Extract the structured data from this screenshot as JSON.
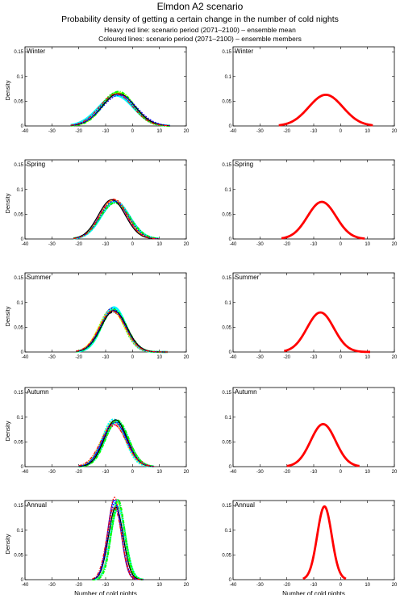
{
  "header": {
    "title": "Elmdon A2 scenario",
    "subtitle": "Probability density of getting a certain change in the number of cold nights",
    "note_mean": "Heavy red line: scenario period (2071–2100) – ensemble mean",
    "note_members": "Coloured lines: scenario period (2071–2100) – ensemble members"
  },
  "colors": {
    "ensemble_mean": "#ff0000",
    "member_colors": [
      "#00ffff",
      "#00ff00",
      "#000000",
      "#0000ff",
      "#ff0000",
      "#ff00ff",
      "#ffff00"
    ]
  },
  "chart_data": [
    {
      "type": "line",
      "panel": "Winter",
      "column": "ensemble members",
      "xlabel": "",
      "ylabel": "Density",
      "xlim": [
        -40,
        20
      ],
      "ylim": [
        0,
        0.16
      ],
      "xticks": [
        -40,
        -30,
        -20,
        -10,
        0,
        10,
        20
      ],
      "yticks": [
        0,
        0.05,
        0.1,
        0.15
      ],
      "series": [
        {
          "kind": "ensemble members",
          "mean": -5.5,
          "peak": 0.065,
          "x_range": [
            -23,
            14
          ]
        }
      ]
    },
    {
      "type": "line",
      "panel": "Winter",
      "column": "ensemble mean",
      "xlabel": "",
      "ylabel": "",
      "xlim": [
        -40,
        20
      ],
      "ylim": [
        0,
        0.16
      ],
      "xticks": [
        -40,
        -30,
        -20,
        -10,
        0,
        10,
        20
      ],
      "yticks": [
        0,
        0.05,
        0.1,
        0.15
      ],
      "series": [
        {
          "kind": "ensemble mean",
          "mean": -5.5,
          "peak": 0.063,
          "x_range": [
            -23,
            12
          ]
        }
      ]
    },
    {
      "type": "line",
      "panel": "Spring",
      "column": "ensemble members",
      "xlabel": "",
      "ylabel": "Density",
      "xlim": [
        -40,
        20
      ],
      "ylim": [
        0,
        0.16
      ],
      "xticks": [
        -40,
        -30,
        -20,
        -10,
        0,
        10,
        20
      ],
      "yticks": [
        0,
        0.05,
        0.1,
        0.15
      ],
      "series": [
        {
          "kind": "ensemble members",
          "mean": -7,
          "peak": 0.077,
          "x_range": [
            -22,
            10
          ]
        }
      ]
    },
    {
      "type": "line",
      "panel": "Spring",
      "column": "ensemble mean",
      "xlabel": "",
      "ylabel": "",
      "xlim": [
        -40,
        20
      ],
      "ylim": [
        0,
        0.16
      ],
      "xticks": [
        -40,
        -30,
        -20,
        -10,
        0,
        10,
        20
      ],
      "yticks": [
        0,
        0.05,
        0.1,
        0.15
      ],
      "series": [
        {
          "kind": "ensemble mean",
          "mean": -7,
          "peak": 0.075,
          "x_range": [
            -22,
            9
          ]
        }
      ]
    },
    {
      "type": "line",
      "panel": "Summer",
      "column": "ensemble members",
      "xlabel": "",
      "ylabel": "Density",
      "xlim": [
        -40,
        20
      ],
      "ylim": [
        0,
        0.16
      ],
      "xticks": [
        -40,
        -30,
        -20,
        -10,
        0,
        10,
        20
      ],
      "yticks": [
        0,
        0.05,
        0.1,
        0.15
      ],
      "series": [
        {
          "kind": "ensemble members",
          "mean": -7.5,
          "peak": 0.085,
          "x_range": [
            -21,
            13
          ]
        }
      ]
    },
    {
      "type": "line",
      "panel": "Summer",
      "column": "ensemble mean",
      "xlabel": "",
      "ylabel": "",
      "xlim": [
        -40,
        20
      ],
      "ylim": [
        0,
        0.16
      ],
      "xticks": [
        -40,
        -30,
        -20,
        -10,
        0,
        10,
        20
      ],
      "yticks": [
        0,
        0.05,
        0.1,
        0.15
      ],
      "series": [
        {
          "kind": "ensemble mean",
          "mean": -7.5,
          "peak": 0.08,
          "x_range": [
            -21,
            11
          ]
        }
      ]
    },
    {
      "type": "line",
      "panel": "Autumn",
      "column": "ensemble members",
      "xlabel": "",
      "ylabel": "Density",
      "xlim": [
        -40,
        20
      ],
      "ylim": [
        0,
        0.16
      ],
      "xticks": [
        -40,
        -30,
        -20,
        -10,
        0,
        10,
        20
      ],
      "yticks": [
        0,
        0.05,
        0.1,
        0.15
      ],
      "series": [
        {
          "kind": "ensemble members",
          "mean": -6.5,
          "peak": 0.09,
          "x_range": [
            -20,
            8
          ]
        }
      ]
    },
    {
      "type": "line",
      "panel": "Autumn",
      "column": "ensemble mean",
      "xlabel": "",
      "ylabel": "",
      "xlim": [
        -40,
        20
      ],
      "ylim": [
        0,
        0.16
      ],
      "xticks": [
        -40,
        -30,
        -20,
        -10,
        0,
        10,
        20
      ],
      "yticks": [
        0,
        0.05,
        0.1,
        0.15
      ],
      "series": [
        {
          "kind": "ensemble mean",
          "mean": -6.5,
          "peak": 0.086,
          "x_range": [
            -20,
            7
          ]
        }
      ]
    },
    {
      "type": "line",
      "panel": "Annual",
      "column": "ensemble members",
      "xlabel": "Number of cold nights",
      "ylabel": "Density",
      "xlim": [
        -40,
        20
      ],
      "ylim": [
        0,
        0.16
      ],
      "xticks": [
        -40,
        -30,
        -20,
        -10,
        0,
        10,
        20
      ],
      "yticks": [
        0,
        0.05,
        0.1,
        0.15
      ],
      "series": [
        {
          "kind": "ensemble members",
          "mean": -6,
          "peak": 0.155,
          "x_range": [
            -15,
            4
          ]
        }
      ]
    },
    {
      "type": "line",
      "panel": "Annual",
      "column": "ensemble mean",
      "xlabel": "Number of cold nights",
      "ylabel": "",
      "xlim": [
        -40,
        20
      ],
      "ylim": [
        0,
        0.16
      ],
      "xticks": [
        -40,
        -30,
        -20,
        -10,
        0,
        10,
        20
      ],
      "yticks": [
        0,
        0.05,
        0.1,
        0.15
      ],
      "series": [
        {
          "kind": "ensemble mean",
          "mean": -6,
          "peak": 0.148,
          "x_range": [
            -14,
            2
          ]
        }
      ]
    }
  ]
}
